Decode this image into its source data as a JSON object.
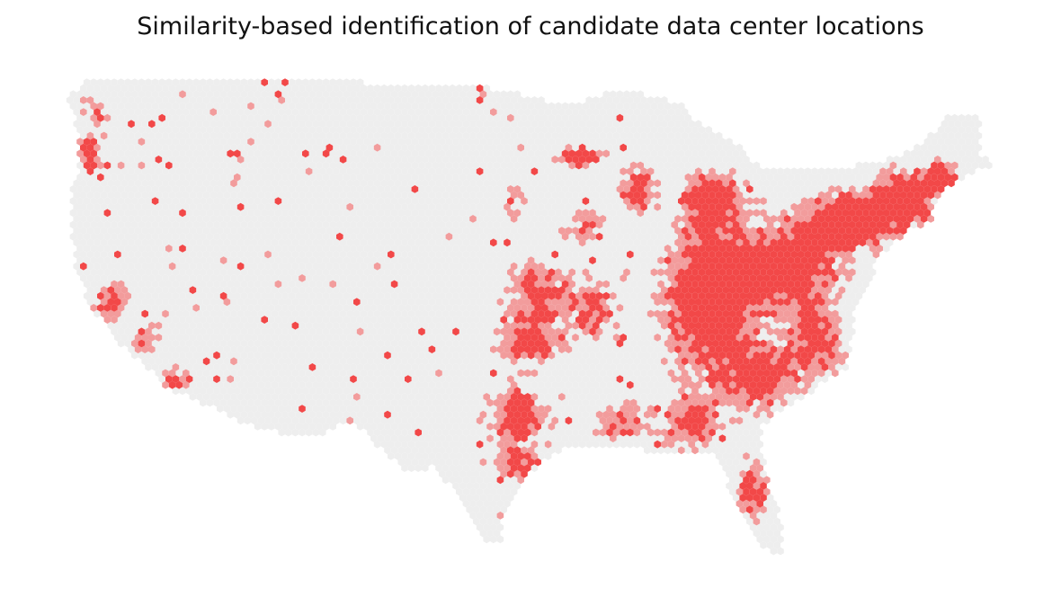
{
  "title": "Similarity-based identification of candidate data center locations",
  "colors": {
    "background": "#ffffff",
    "land": "#eeeeee",
    "moderate": "#f29c9c",
    "high": "#f24848"
  }
}
